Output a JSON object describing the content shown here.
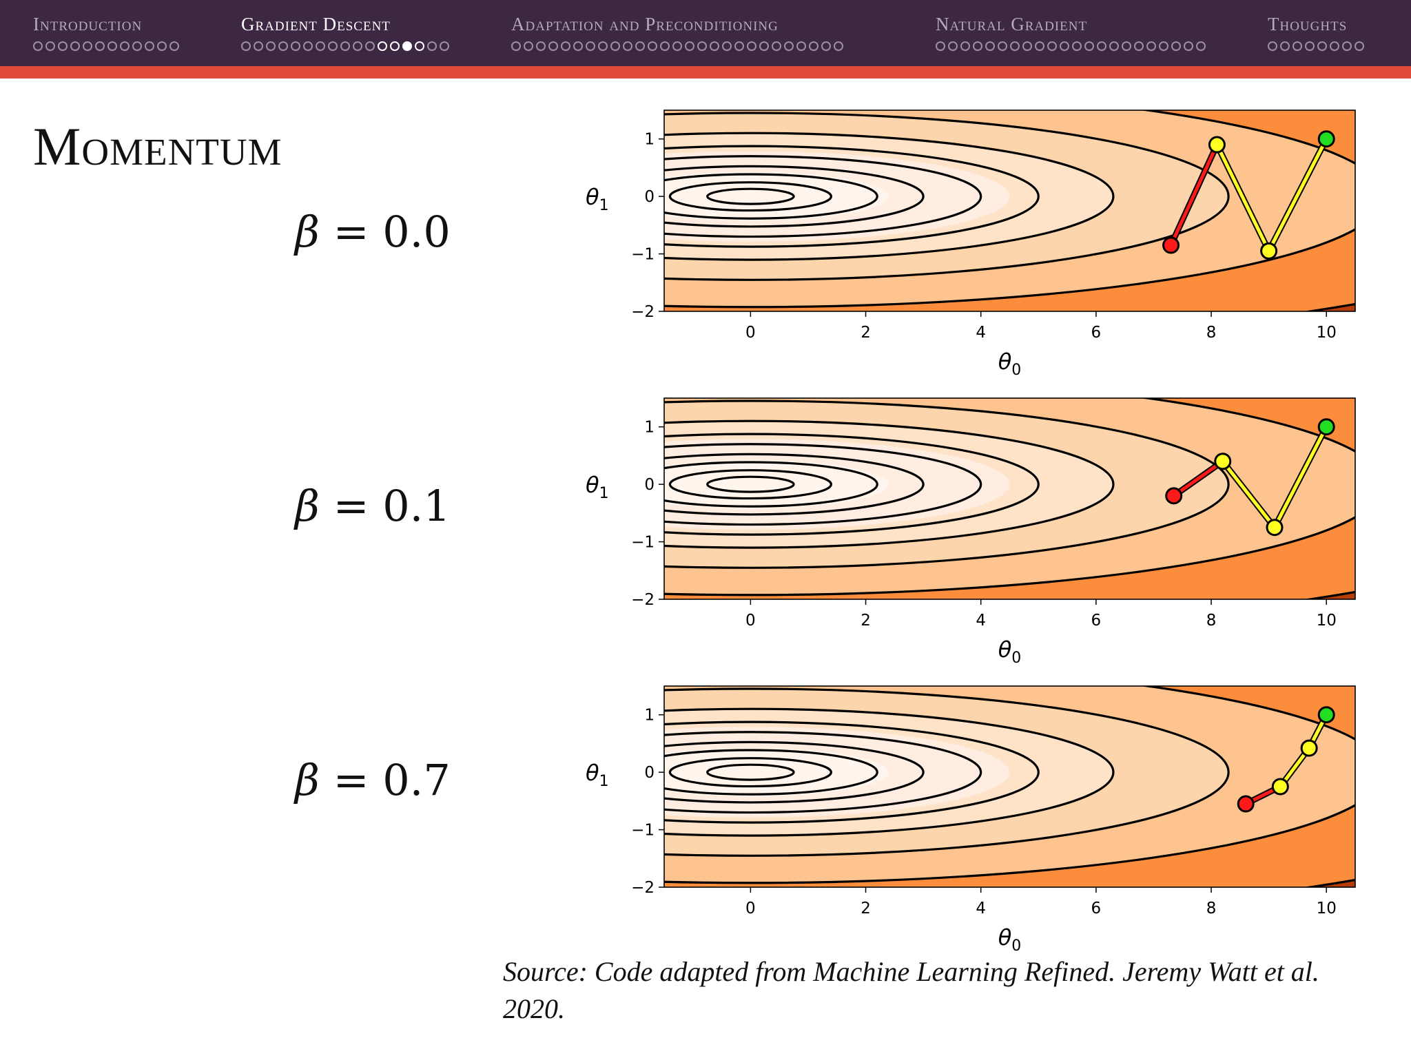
{
  "nav": {
    "sections": [
      {
        "label": "Introduction",
        "dots": 12,
        "current": -1,
        "seen": 0
      },
      {
        "label": "Gradient Descent",
        "dots": 17,
        "current": 13,
        "seen": 15
      },
      {
        "label": "Adaptation and Preconditioning",
        "dots": 27,
        "current": -1,
        "seen": 0
      },
      {
        "label": "Natural Gradient",
        "dots": 22,
        "current": -1,
        "seen": 0
      },
      {
        "label": "Thoughts",
        "dots": 8,
        "current": -1,
        "seen": 0
      }
    ]
  },
  "slide": {
    "title": "Momentum",
    "source": "Source: Code adapted from Machine Learning Refined. Jeremy Watt et al. 2020."
  },
  "chart_data": [
    {
      "type": "line",
      "beta_symbol": "β",
      "beta_value": "= 0.0",
      "xlabel": "θ0",
      "ylabel": "θ1",
      "xlim": [
        -1.5,
        10.5
      ],
      "ylim": [
        -2,
        1.5
      ],
      "xticks": [
        0,
        2,
        4,
        6,
        8,
        10
      ],
      "yticks": [
        -2,
        -1,
        0,
        1
      ],
      "background": "filled contour of loss, minimum at (0, 0)",
      "path": {
        "x": [
          10,
          9.0,
          8.1,
          7.3
        ],
        "y": [
          1.0,
          -0.95,
          0.9,
          -0.85
        ]
      },
      "colors": {
        "start": "#22dd22",
        "middle": "#ffff22",
        "end": "#ff1a1a"
      }
    },
    {
      "type": "line",
      "beta_symbol": "β",
      "beta_value": "= 0.1",
      "xlabel": "θ0",
      "ylabel": "θ1",
      "xlim": [
        -1.5,
        10.5
      ],
      "ylim": [
        -2,
        1.5
      ],
      "xticks": [
        0,
        2,
        4,
        6,
        8,
        10
      ],
      "yticks": [
        -2,
        -1,
        0,
        1
      ],
      "path": {
        "x": [
          10,
          9.1,
          8.2,
          7.35
        ],
        "y": [
          1.0,
          -0.75,
          0.4,
          -0.2
        ]
      },
      "colors": {
        "start": "#22dd22",
        "middle": "#ffff22",
        "end": "#ff1a1a"
      }
    },
    {
      "type": "line",
      "beta_symbol": "β",
      "beta_value": "= 0.7",
      "xlabel": "θ0",
      "ylabel": "θ1",
      "xlim": [
        -1.5,
        10.5
      ],
      "ylim": [
        -2,
        1.5
      ],
      "xticks": [
        0,
        2,
        4,
        6,
        8,
        10
      ],
      "yticks": [
        -2,
        -1,
        0,
        1
      ],
      "path": {
        "x": [
          10,
          9.7,
          9.2,
          8.6
        ],
        "y": [
          1.0,
          0.42,
          -0.25,
          -0.55
        ]
      },
      "colors": {
        "start": "#22dd22",
        "middle": "#ffff22",
        "end": "#ff1a1a"
      }
    }
  ]
}
